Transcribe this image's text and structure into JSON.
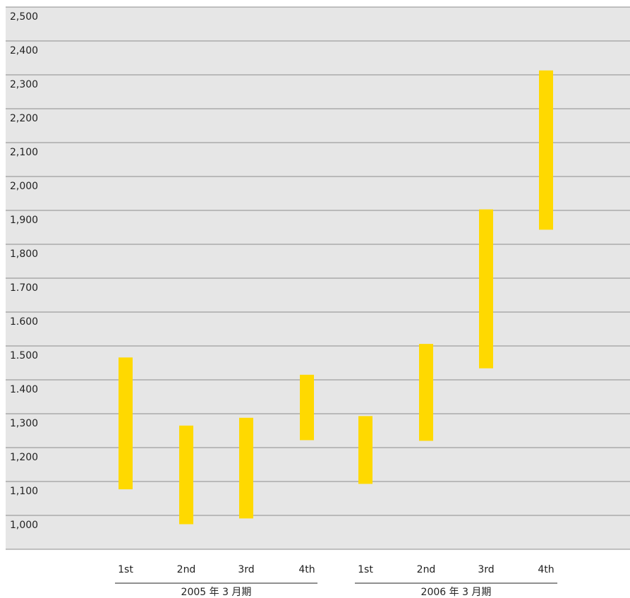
{
  "chart_data": {
    "type": "bar",
    "subtype": "floating-range",
    "title": "",
    "xlabel": "",
    "ylabel": "",
    "ylim": [
      900,
      2500
    ],
    "grid": true,
    "legend": "none",
    "ytick_labels": [
      "1,000",
      "1,100",
      "1,200",
      "1,300",
      "1.400",
      "1.500",
      "1.600",
      "1.700",
      "1,800",
      "1,900",
      "2,000",
      "2,100",
      "2,200",
      "2,300",
      "2,400",
      "2,500"
    ],
    "ytick_values": [
      1000,
      1100,
      1200,
      1300,
      1400,
      1500,
      1600,
      1700,
      1800,
      1900,
      2000,
      2100,
      2200,
      2300,
      2400,
      2500
    ],
    "categories": [
      "1st",
      "2nd",
      "3rd",
      "4th",
      "1st",
      "2nd",
      "3rd",
      "4th"
    ],
    "groups": [
      {
        "label": "2005 年 3 月期",
        "categories": [
          "1st",
          "2nd",
          "3rd",
          "4th"
        ]
      },
      {
        "label": "2006 年 3 月期",
        "categories": [
          "1st",
          "2nd",
          "3rd",
          "4th"
        ]
      }
    ],
    "series": [
      {
        "low": [
          1077,
          974,
          991,
          1222,
          1093,
          1220,
          1434,
          1843
        ],
        "high": [
          1466,
          1265,
          1288,
          1415,
          1293,
          1506,
          1903,
          2313
        ]
      }
    ],
    "colors": {
      "bar": "#FFD900",
      "plot_background": "#E6E6E6",
      "gridline": "#8C8C8C",
      "text": "#222222"
    }
  }
}
